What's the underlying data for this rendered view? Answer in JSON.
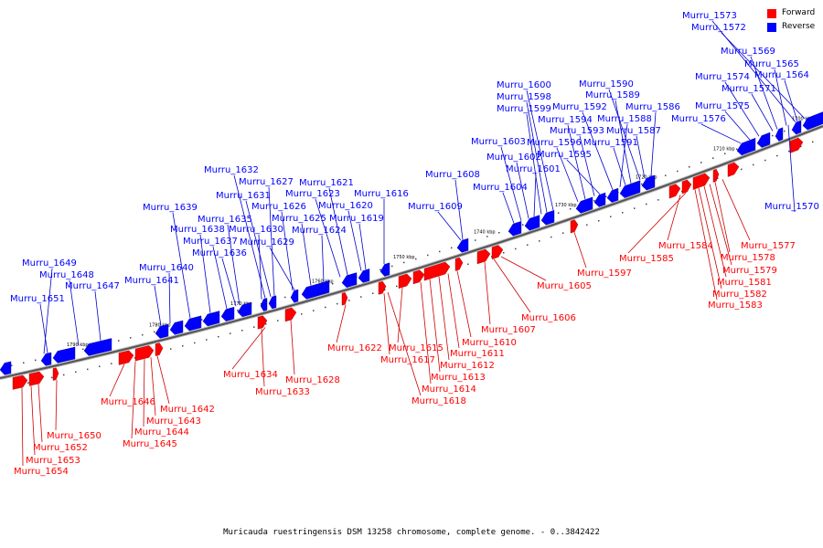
{
  "caption": "Muricauda ruestringensis DSM 13258 chromosome, complete genome. - 0..3842422",
  "legend": [
    {
      "label": "Forward",
      "color": "#ff0000"
    },
    {
      "label": "Reverse",
      "color": "#0000ff"
    }
  ],
  "colors": {
    "forward": "#ff0000",
    "reverse": "#0000ff",
    "forward_line": "#cc0000",
    "reverse_line": "#0000cc",
    "backbone": "#888888"
  },
  "ticks": [
    "1700 kbp",
    "1710 kbp",
    "1720 kbp",
    "1730 kbp",
    "1740 kbp",
    "1750 kbp",
    "1760 kbp",
    "1770 kbp",
    "1780 kbp",
    "1790 kbp"
  ],
  "reverse_genes": [
    "Murru_1573",
    "Murru_1572",
    "Murru_1569",
    "Murru_1565",
    "Murru_1564",
    "Murru_1574",
    "Murru_1571",
    "Murru_1575",
    "Murru_1576",
    "Murru_1570",
    "Murru_1590",
    "Murru_1589",
    "Murru_1600",
    "Murru_1598",
    "Murru_1599",
    "Murru_1592",
    "Murru_1586",
    "Murru_1594",
    "Murru_1588",
    "Murru_1593",
    "Murru_1587",
    "Murru_1603",
    "Murru_1596",
    "Murru_1591",
    "Murru_1602",
    "Murru_1595",
    "Murru_1601",
    "Murru_1608",
    "Murru_1604",
    "Murru_1609",
    "Murru_1632",
    "Murru_1627",
    "Murru_1621",
    "Murru_1631",
    "Murru_1623",
    "Murru_1616",
    "Murru_1639",
    "Murru_1626",
    "Murru_1620",
    "Murru_1635",
    "Murru_1625",
    "Murru_1619",
    "Murru_1638",
    "Murru_1630",
    "Murru_1624",
    "Murru_1637",
    "Murru_1629",
    "Murru_1636",
    "Murru_1649",
    "Murru_1640",
    "Murru_1648",
    "Murru_1641",
    "Murru_1647",
    "Murru_1651"
  ],
  "forward_genes": [
    "Murru_1577",
    "Murru_1584",
    "Murru_1578",
    "Murru_1585",
    "Murru_1579",
    "Murru_1581",
    "Murru_1582",
    "Murru_1583",
    "Murru_1597",
    "Murru_1605",
    "Murru_1606",
    "Murru_1607",
    "Murru_1610",
    "Murru_1611",
    "Murru_1612",
    "Murru_1613",
    "Murru_1614",
    "Murru_1615",
    "Murru_1617",
    "Murru_1618",
    "Murru_1622",
    "Murru_1628",
    "Murru_1634",
    "Murru_1633",
    "Murru_1642",
    "Murru_1643",
    "Murru_1644",
    "Murru_1645",
    "Murru_1646",
    "Murru_1650",
    "Murru_1652",
    "Murru_1653",
    "Murru_1654"
  ]
}
